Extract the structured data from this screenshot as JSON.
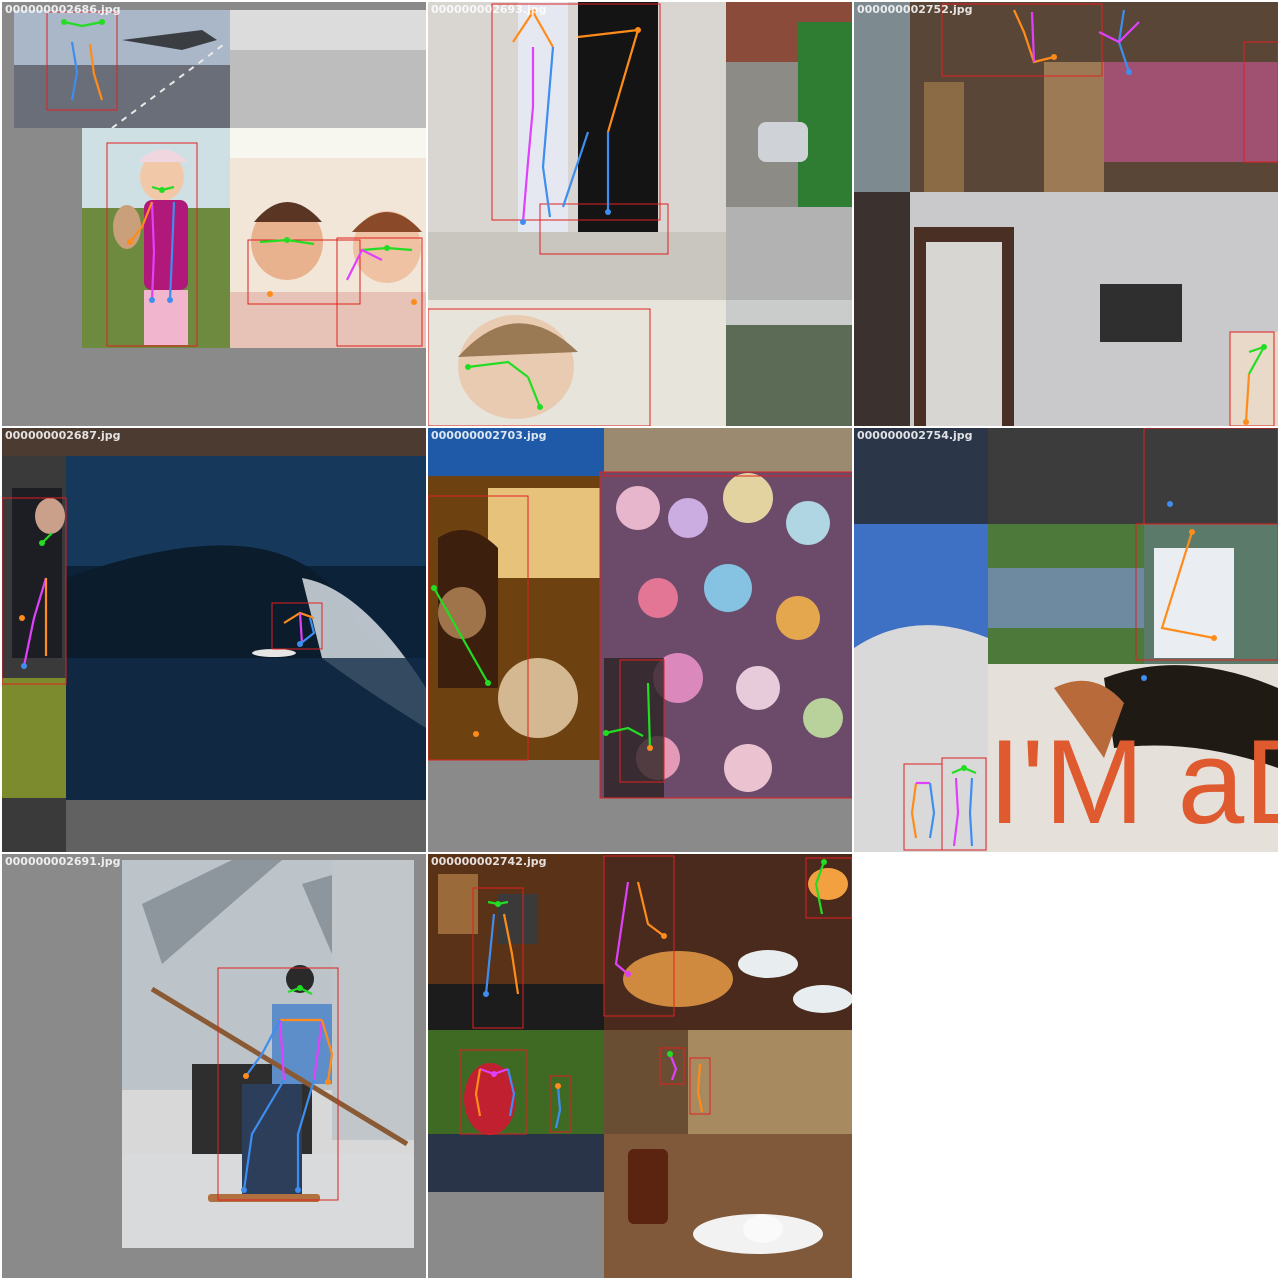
{
  "page": {
    "background": "#ffffff"
  },
  "colors": {
    "bbox": "#e02020",
    "face": "#22dd22",
    "left_limb": "#ff8c1a",
    "right_limb": "#3d8ef0",
    "torso": "#e040fb",
    "padding": "#8a8a8a"
  },
  "tiles": [
    {
      "filename": "000000002686.jpg"
    },
    {
      "filename": "000000002693.jpg"
    },
    {
      "filename": "000000002752.jpg"
    },
    {
      "filename": "000000002687.jpg"
    },
    {
      "filename": "000000002703.jpg"
    },
    {
      "filename": "000000002754.jpg"
    },
    {
      "filename": "000000002691.jpg"
    },
    {
      "filename": "000000002742.jpg"
    }
  ],
  "overlay_text": {
    "tile6_sign": "I'M aD"
  }
}
